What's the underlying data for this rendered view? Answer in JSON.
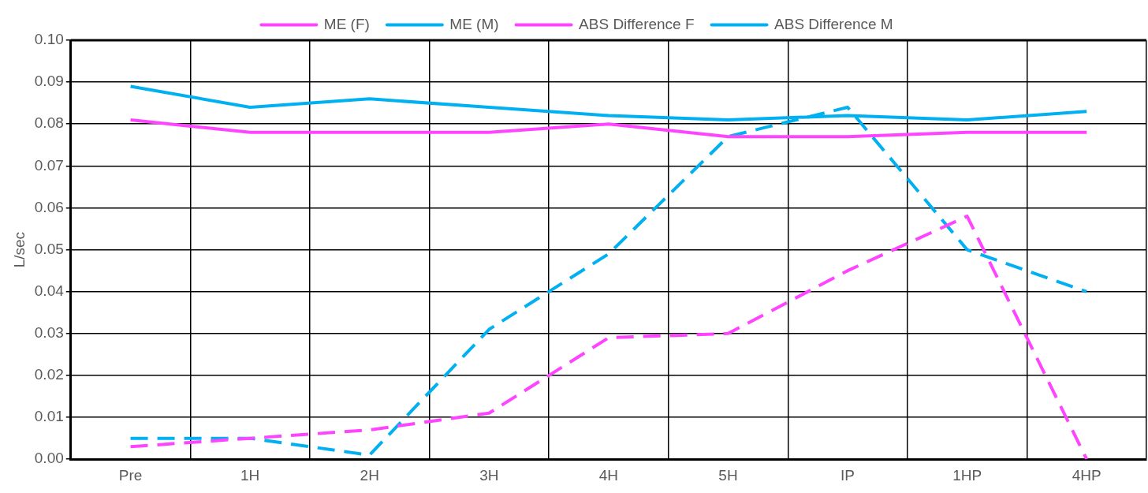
{
  "chart_data": {
    "type": "line",
    "ylabel": "L/sec",
    "categories": [
      "Pre",
      "1H",
      "2H",
      "3H",
      "4H",
      "5H",
      "IP",
      "1HP",
      "4HP"
    ],
    "series": [
      {
        "name": "ME (F)",
        "color": "#ff44ff",
        "line_style": "solid",
        "values": [
          0.081,
          0.078,
          0.078,
          0.078,
          0.08,
          0.077,
          0.077,
          0.078,
          0.078
        ]
      },
      {
        "name": "ME (M)",
        "color": "#00b0f0",
        "line_style": "solid",
        "values": [
          0.089,
          0.084,
          0.086,
          0.084,
          0.082,
          0.081,
          0.082,
          0.081,
          0.083
        ]
      },
      {
        "name": "ABS Difference F",
        "color": "#ff44ff",
        "line_style": "dashed",
        "values": [
          0.003,
          0.005,
          0.007,
          0.011,
          0.029,
          0.03,
          0.045,
          0.058,
          0.0
        ]
      },
      {
        "name": "ABS Difference M",
        "color": "#00b0f0",
        "line_style": "dashed",
        "values": [
          0.005,
          0.005,
          0.001,
          0.031,
          0.049,
          0.077,
          0.084,
          0.05,
          0.04
        ]
      }
    ],
    "ylim": [
      0,
      0.1
    ],
    "yticks": [
      {
        "value": 0,
        "label": "0.00"
      },
      {
        "value": 0.01,
        "label": "0.01"
      },
      {
        "value": 0.02,
        "label": "0.02"
      },
      {
        "value": 0.03,
        "label": "0.03"
      },
      {
        "value": 0.04,
        "label": "0.04"
      },
      {
        "value": 0.05,
        "label": "0.05"
      },
      {
        "value": 0.06,
        "label": "0.06"
      },
      {
        "value": 0.07,
        "label": "0.07"
      },
      {
        "value": 0.08,
        "label": "0.08"
      },
      {
        "value": 0.09,
        "label": "0.09"
      },
      {
        "value": 0.1,
        "label": "0.10"
      }
    ],
    "grid": true,
    "legend": "top",
    "marker": "none"
  }
}
